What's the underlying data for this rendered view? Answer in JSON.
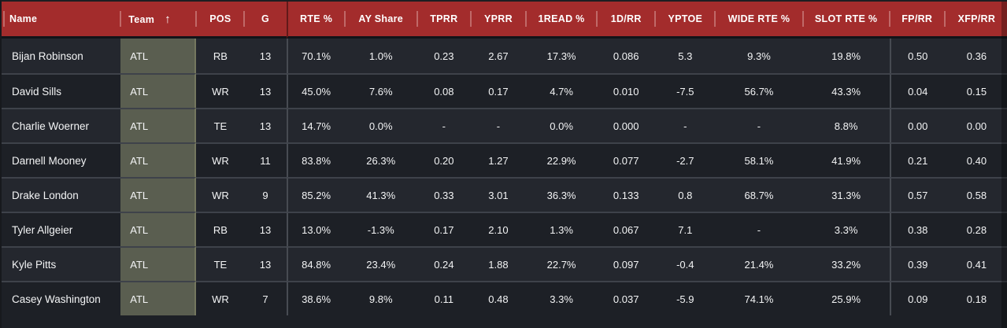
{
  "theme": {
    "header_bg": "#a32c2c",
    "row_bg": "#24272e",
    "row_bg_alt": "#1d2026",
    "team_cell_bg": "#5a5e50",
    "divider": "#3e424a",
    "text": "#ffffff"
  },
  "table": {
    "sort_icon": "↑",
    "sorted_column": "Team",
    "columns": [
      {
        "key": "name",
        "label": "Name"
      },
      {
        "key": "team",
        "label": "Team"
      },
      {
        "key": "pos",
        "label": "POS"
      },
      {
        "key": "g",
        "label": "G"
      },
      {
        "key": "rte_pct",
        "label": "RTE %"
      },
      {
        "key": "ay_share",
        "label": "AY Share"
      },
      {
        "key": "tprr",
        "label": "TPRR"
      },
      {
        "key": "yprr",
        "label": "YPRR"
      },
      {
        "key": "first_read_pct",
        "label": "1READ %"
      },
      {
        "key": "fd_per_rr",
        "label": "1D/RR"
      },
      {
        "key": "yptoe",
        "label": "YPTOE"
      },
      {
        "key": "wide_rte_pct",
        "label": "WIDE RTE %"
      },
      {
        "key": "slot_rte_pct",
        "label": "SLOT RTE %"
      },
      {
        "key": "fp_per_rr",
        "label": "FP/RR"
      },
      {
        "key": "xfp_per_rr",
        "label": "XFP/RR"
      }
    ],
    "rows": [
      {
        "name": "Bijan Robinson",
        "team": "ATL",
        "pos": "RB",
        "g": "13",
        "rte_pct": "70.1%",
        "ay_share": "1.0%",
        "tprr": "0.23",
        "yprr": "2.67",
        "first_read_pct": "17.3%",
        "fd_per_rr": "0.086",
        "yptoe": "5.3",
        "wide_rte_pct": "9.3%",
        "slot_rte_pct": "19.8%",
        "fp_per_rr": "0.50",
        "xfp_per_rr": "0.36"
      },
      {
        "name": "David Sills",
        "team": "ATL",
        "pos": "WR",
        "g": "13",
        "rte_pct": "45.0%",
        "ay_share": "7.6%",
        "tprr": "0.08",
        "yprr": "0.17",
        "first_read_pct": "4.7%",
        "fd_per_rr": "0.010",
        "yptoe": "-7.5",
        "wide_rte_pct": "56.7%",
        "slot_rte_pct": "43.3%",
        "fp_per_rr": "0.04",
        "xfp_per_rr": "0.15"
      },
      {
        "name": "Charlie Woerner",
        "team": "ATL",
        "pos": "TE",
        "g": "13",
        "rte_pct": "14.7%",
        "ay_share": "0.0%",
        "tprr": "-",
        "yprr": "-",
        "first_read_pct": "0.0%",
        "fd_per_rr": "0.000",
        "yptoe": "-",
        "wide_rte_pct": "-",
        "slot_rte_pct": "8.8%",
        "fp_per_rr": "0.00",
        "xfp_per_rr": "0.00"
      },
      {
        "name": "Darnell Mooney",
        "team": "ATL",
        "pos": "WR",
        "g": "11",
        "rte_pct": "83.8%",
        "ay_share": "26.3%",
        "tprr": "0.20",
        "yprr": "1.27",
        "first_read_pct": "22.9%",
        "fd_per_rr": "0.077",
        "yptoe": "-2.7",
        "wide_rte_pct": "58.1%",
        "slot_rte_pct": "41.9%",
        "fp_per_rr": "0.21",
        "xfp_per_rr": "0.40"
      },
      {
        "name": "Drake London",
        "team": "ATL",
        "pos": "WR",
        "g": "9",
        "rte_pct": "85.2%",
        "ay_share": "41.3%",
        "tprr": "0.33",
        "yprr": "3.01",
        "first_read_pct": "36.3%",
        "fd_per_rr": "0.133",
        "yptoe": "0.8",
        "wide_rte_pct": "68.7%",
        "slot_rte_pct": "31.3%",
        "fp_per_rr": "0.57",
        "xfp_per_rr": "0.58"
      },
      {
        "name": "Tyler Allgeier",
        "team": "ATL",
        "pos": "RB",
        "g": "13",
        "rte_pct": "13.0%",
        "ay_share": "-1.3%",
        "tprr": "0.17",
        "yprr": "2.10",
        "first_read_pct": "1.3%",
        "fd_per_rr": "0.067",
        "yptoe": "7.1",
        "wide_rte_pct": "-",
        "slot_rte_pct": "3.3%",
        "fp_per_rr": "0.38",
        "xfp_per_rr": "0.28"
      },
      {
        "name": "Kyle Pitts",
        "team": "ATL",
        "pos": "TE",
        "g": "13",
        "rte_pct": "84.8%",
        "ay_share": "23.4%",
        "tprr": "0.24",
        "yprr": "1.88",
        "first_read_pct": "22.7%",
        "fd_per_rr": "0.097",
        "yptoe": "-0.4",
        "wide_rte_pct": "21.4%",
        "slot_rte_pct": "33.2%",
        "fp_per_rr": "0.39",
        "xfp_per_rr": "0.41"
      },
      {
        "name": "Casey Washington",
        "team": "ATL",
        "pos": "WR",
        "g": "7",
        "rte_pct": "38.6%",
        "ay_share": "9.8%",
        "tprr": "0.11",
        "yprr": "0.48",
        "first_read_pct": "3.3%",
        "fd_per_rr": "0.037",
        "yptoe": "-5.9",
        "wide_rte_pct": "74.1%",
        "slot_rte_pct": "25.9%",
        "fp_per_rr": "0.09",
        "xfp_per_rr": "0.18"
      }
    ]
  }
}
